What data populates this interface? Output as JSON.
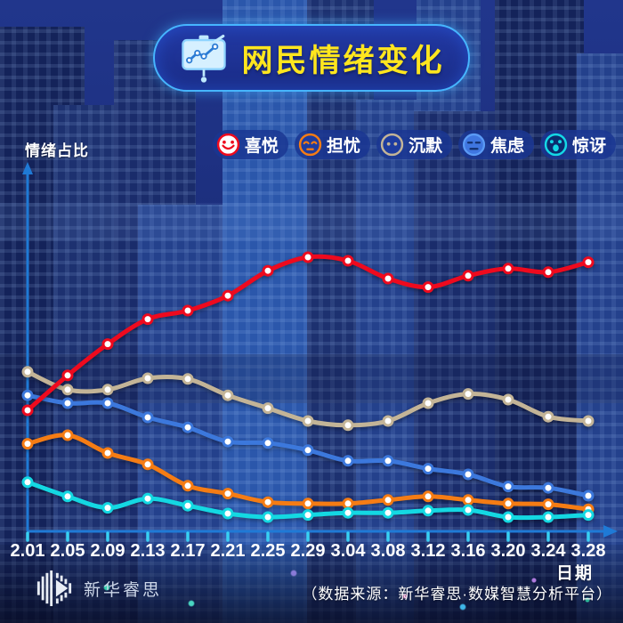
{
  "title": {
    "text": "网民情绪变化"
  },
  "legend": [
    {
      "label": "喜悦",
      "color": "#ee0a1e",
      "icon": "joy-face-icon"
    },
    {
      "label": "担忧",
      "color": "#f57c14",
      "icon": "worry-face-icon"
    },
    {
      "label": "沉默",
      "color": "#c3b497",
      "icon": "silence-face-icon"
    },
    {
      "label": "焦虑",
      "color": "#3c78dc",
      "icon": "anxiety-face-icon"
    },
    {
      "label": "惊讶",
      "color": "#14d8e2",
      "icon": "surprise-face-icon"
    }
  ],
  "chart_data": {
    "type": "line",
    "title": "网民情绪变化",
    "xlabel": "日期",
    "ylabel": "情绪占比",
    "categories": [
      "2.01",
      "2.05",
      "2.09",
      "2.13",
      "2.17",
      "2.21",
      "2.25",
      "2.29",
      "3.04",
      "3.08",
      "3.12",
      "3.16",
      "3.20",
      "3.24",
      "3.28"
    ],
    "series": [
      {
        "name": "沉默",
        "color": "#c3b497",
        "values": [
          22.4,
          19.9,
          19.9,
          21.5,
          21.4,
          19.1,
          17.3,
          15.5,
          14.9,
          15.5,
          18.0,
          19.3,
          18.5,
          16.1,
          15.5
        ]
      },
      {
        "name": "焦虑",
        "color": "#3c78dc",
        "values": [
          19.1,
          18.0,
          18.0,
          16.0,
          14.6,
          12.6,
          12.4,
          11.4,
          9.9,
          9.9,
          8.8,
          8.0,
          6.3,
          6.1,
          5.0
        ]
      },
      {
        "name": "担忧",
        "color": "#f57c14",
        "values": [
          12.3,
          13.5,
          11.0,
          9.4,
          6.4,
          5.3,
          4.1,
          3.9,
          3.9,
          4.4,
          4.9,
          4.4,
          3.9,
          3.8,
          3.1
        ]
      },
      {
        "name": "惊讶",
        "color": "#14d8e2",
        "values": [
          6.9,
          4.9,
          3.3,
          4.6,
          3.6,
          2.5,
          2.0,
          2.3,
          2.6,
          2.6,
          2.9,
          3.0,
          2.0,
          2.0,
          2.3
        ]
      },
      {
        "name": "喜悦",
        "color": "#ee0a1e",
        "values": [
          17.0,
          21.9,
          26.3,
          29.8,
          31.0,
          33.1,
          36.6,
          38.5,
          38.0,
          35.5,
          34.3,
          35.9,
          36.9,
          36.4,
          37.8
        ]
      }
    ],
    "ylim": [
      0,
      50
    ],
    "grid": false,
    "legend_position": "top-right",
    "axis_color": "#1f7ad6",
    "tick_color": "#38d0f4"
  },
  "footer": {
    "brand": "新华睿思",
    "source": "（数据来源：新华睿思·数媒智慧分析平台）"
  }
}
